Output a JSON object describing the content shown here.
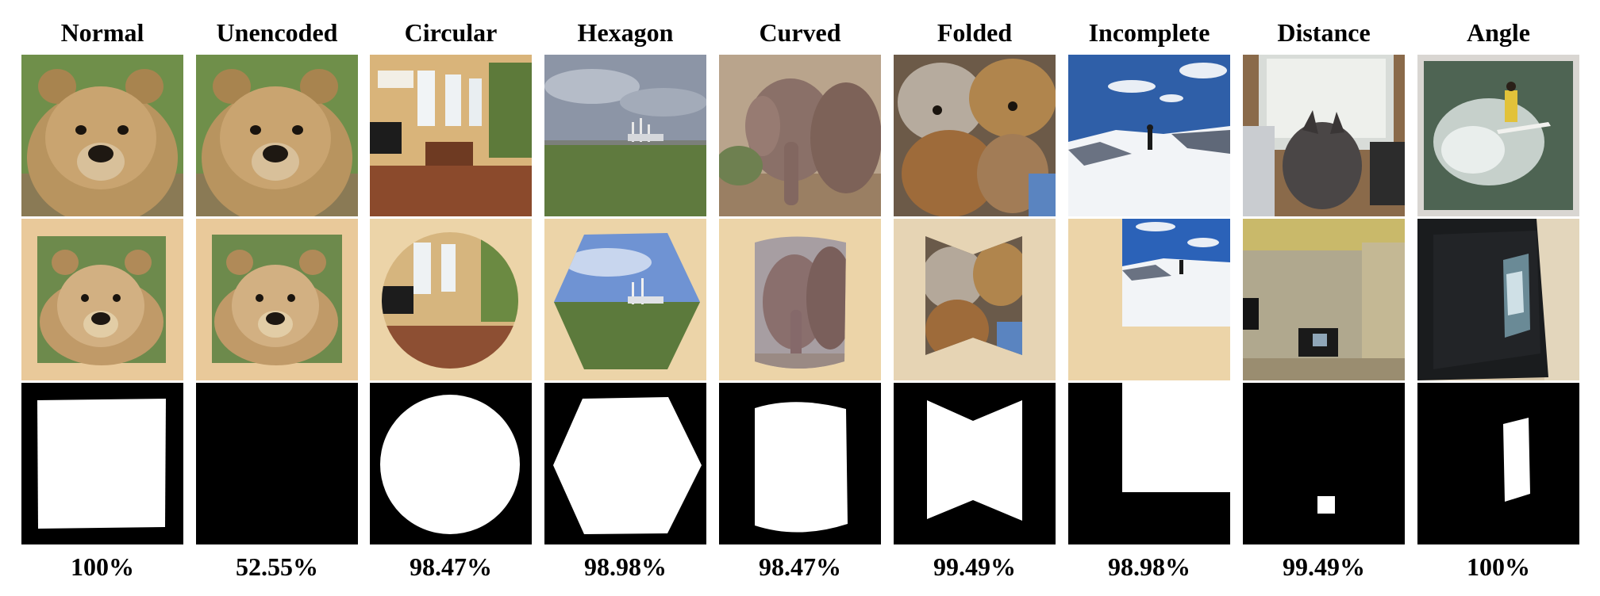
{
  "columns": [
    {
      "title": "Normal",
      "accuracy": "100%",
      "photo_subject": "bear-photo",
      "capture_subject": "bear-print-photo",
      "mask_shape": "square-mask"
    },
    {
      "title": "Unencoded",
      "accuracy": "52.55%",
      "photo_subject": "bear-photo",
      "capture_subject": "bear-print-photo",
      "mask_shape": "empty-mask"
    },
    {
      "title": "Circular",
      "accuracy": "98.47%",
      "photo_subject": "room-interior-photo",
      "capture_subject": "circular-print-photo",
      "mask_shape": "circle-mask"
    },
    {
      "title": "Hexagon",
      "accuracy": "98.98%",
      "photo_subject": "harbor-field-photo",
      "capture_subject": "hexagon-print-photo",
      "mask_shape": "hexagon-mask"
    },
    {
      "title": "Curved",
      "accuracy": "98.47%",
      "photo_subject": "elephant-photo",
      "capture_subject": "curved-print-photo",
      "mask_shape": "curved-mask"
    },
    {
      "title": "Folded",
      "accuracy": "99.49%",
      "photo_subject": "teddy-bears-photo",
      "capture_subject": "folded-print-photo",
      "mask_shape": "folded-mask"
    },
    {
      "title": "Incomplete",
      "accuracy": "98.98%",
      "photo_subject": "snow-skier-photo",
      "capture_subject": "incomplete-print-photo",
      "mask_shape": "incomplete-mask"
    },
    {
      "title": "Distance",
      "accuracy": "99.49%",
      "photo_subject": "cat-monitor-photo",
      "capture_subject": "distant-screen-photo",
      "mask_shape": "small-square-mask"
    },
    {
      "title": "Angle",
      "accuracy": "100%",
      "photo_subject": "surfer-photo",
      "capture_subject": "angled-screen-photo",
      "mask_shape": "skewed-quad-mask"
    }
  ]
}
